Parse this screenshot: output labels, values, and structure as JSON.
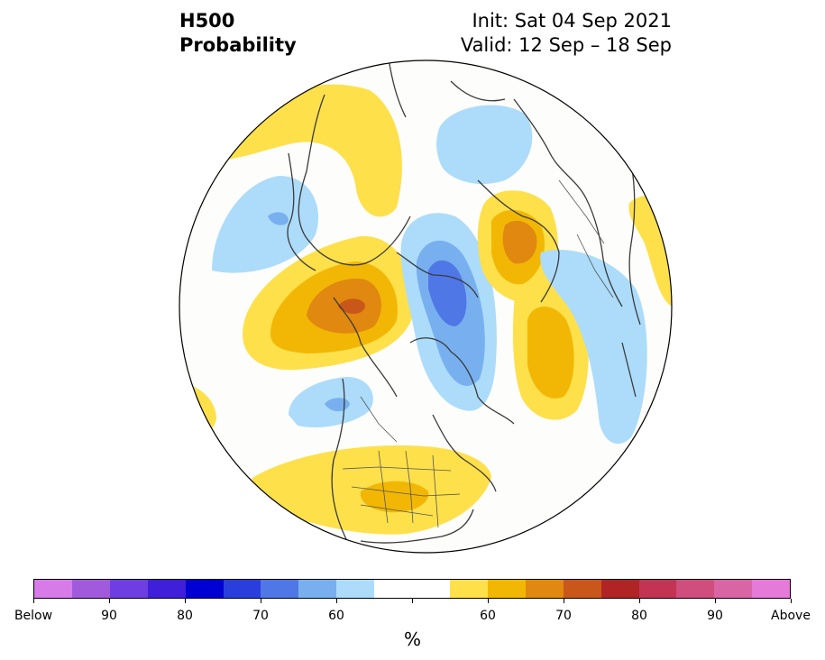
{
  "header": {
    "title_line1": "H500",
    "title_line2": "Probability",
    "init": "Init: Sat 04 Sep 2021",
    "valid": "Valid: 12 Sep – 18 Sep"
  },
  "colorbar": {
    "colors": [
      "#d77be9",
      "#a25add",
      "#6e3fe0",
      "#3f1fda",
      "#0000d2",
      "#2a3ede",
      "#4f77e6",
      "#78b0ef",
      "#acdcfa",
      "#ffffff",
      "#ffffff",
      "#fee04a",
      "#f2b705",
      "#e0880f",
      "#c9571a",
      "#b02425",
      "#c23354",
      "#cf4e7d",
      "#d965a4",
      "#e67ad8"
    ],
    "tick_labels": [
      "Below",
      "90",
      "80",
      "70",
      "60",
      "60",
      "70",
      "80",
      "90",
      "Above"
    ],
    "unit": "%"
  },
  "legend_colors": {
    "below_light": "#acdcfa",
    "below_med": "#78b0ef",
    "below_dark": "#4f77e6",
    "above_light": "#fee04a",
    "above_med": "#f2b705",
    "above_dark": "#e0880f",
    "above_darker": "#c9571a"
  }
}
